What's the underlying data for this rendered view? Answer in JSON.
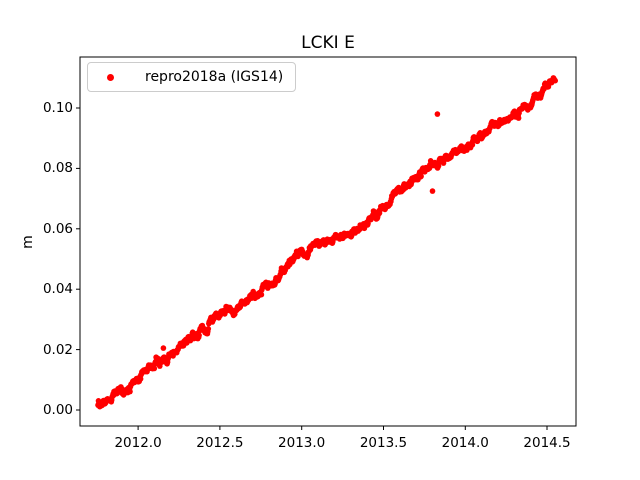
{
  "figure": {
    "title": "LCKI E",
    "ylabel": "m",
    "background_color": "#ffffff",
    "frame_color": "#000000",
    "text_color": "#000000"
  },
  "legend": {
    "label": "repro2018a (IGS14)",
    "marker_color": "#ff0000",
    "border_color": "#cccccc"
  },
  "chart_data": {
    "type": "scatter",
    "title": "LCKI E",
    "xlabel": "",
    "ylabel": "m",
    "legend_entries": [
      "repro2018a (IGS14)"
    ],
    "legend_position": "upper left",
    "grid": false,
    "marker": {
      "shape": "point",
      "color": "#ff0000",
      "radius_px": 2.8
    },
    "x_ticks": [
      2012.0,
      2012.5,
      2013.0,
      2013.5,
      2014.0,
      2014.5
    ],
    "x_tick_labels": [
      "2012.0",
      "2012.5",
      "2013.0",
      "2013.5",
      "2014.0",
      "2014.5"
    ],
    "y_ticks": [
      0.0,
      0.02,
      0.04,
      0.06,
      0.08,
      0.1
    ],
    "y_tick_labels": [
      "0.00",
      "0.02",
      "0.04",
      "0.06",
      "0.08",
      "0.10"
    ],
    "xlim": [
      2011.645,
      2014.677
    ],
    "ylim": [
      -0.0053,
      0.1169
    ],
    "series": [
      {
        "name": "repro2018a (IGS14)",
        "x_start": 2011.755,
        "x_end": 2014.55,
        "n_points": 1000,
        "noise_sd_m": 0.001,
        "trend_slope_m_per_yr": 0.039,
        "trend_anchors": [
          [
            2011.755,
            0.0015
          ],
          [
            2011.82,
            0.0035
          ],
          [
            2011.9,
            0.0069
          ],
          [
            2011.98,
            0.0098
          ],
          [
            2012.06,
            0.0134
          ],
          [
            2012.14,
            0.0167
          ],
          [
            2012.22,
            0.019
          ],
          [
            2012.3,
            0.022
          ],
          [
            2012.4,
            0.026
          ],
          [
            2012.48,
            0.0305
          ],
          [
            2012.54,
            0.0335
          ],
          [
            2012.6,
            0.033
          ],
          [
            2012.68,
            0.037
          ],
          [
            2012.8,
            0.042
          ],
          [
            2012.9,
            0.0468
          ],
          [
            2013.0,
            0.052
          ],
          [
            2013.08,
            0.054
          ],
          [
            2013.16,
            0.0552
          ],
          [
            2013.26,
            0.058
          ],
          [
            2013.36,
            0.061
          ],
          [
            2013.44,
            0.0642
          ],
          [
            2013.52,
            0.0685
          ],
          [
            2013.6,
            0.073
          ],
          [
            2013.68,
            0.076
          ],
          [
            2013.76,
            0.0795
          ],
          [
            2013.82,
            0.0805
          ],
          [
            2013.9,
            0.0838
          ],
          [
            2013.98,
            0.088
          ],
          [
            2014.06,
            0.0905
          ],
          [
            2014.16,
            0.0932
          ],
          [
            2014.26,
            0.0965
          ],
          [
            2014.34,
            0.0988
          ],
          [
            2014.42,
            0.102
          ],
          [
            2014.5,
            0.108
          ],
          [
            2014.55,
            0.1105
          ]
        ],
        "outliers": [
          [
            2012.155,
            0.0205
          ],
          [
            2013.8,
            0.0725
          ],
          [
            2013.83,
            0.098
          ]
        ]
      }
    ]
  }
}
